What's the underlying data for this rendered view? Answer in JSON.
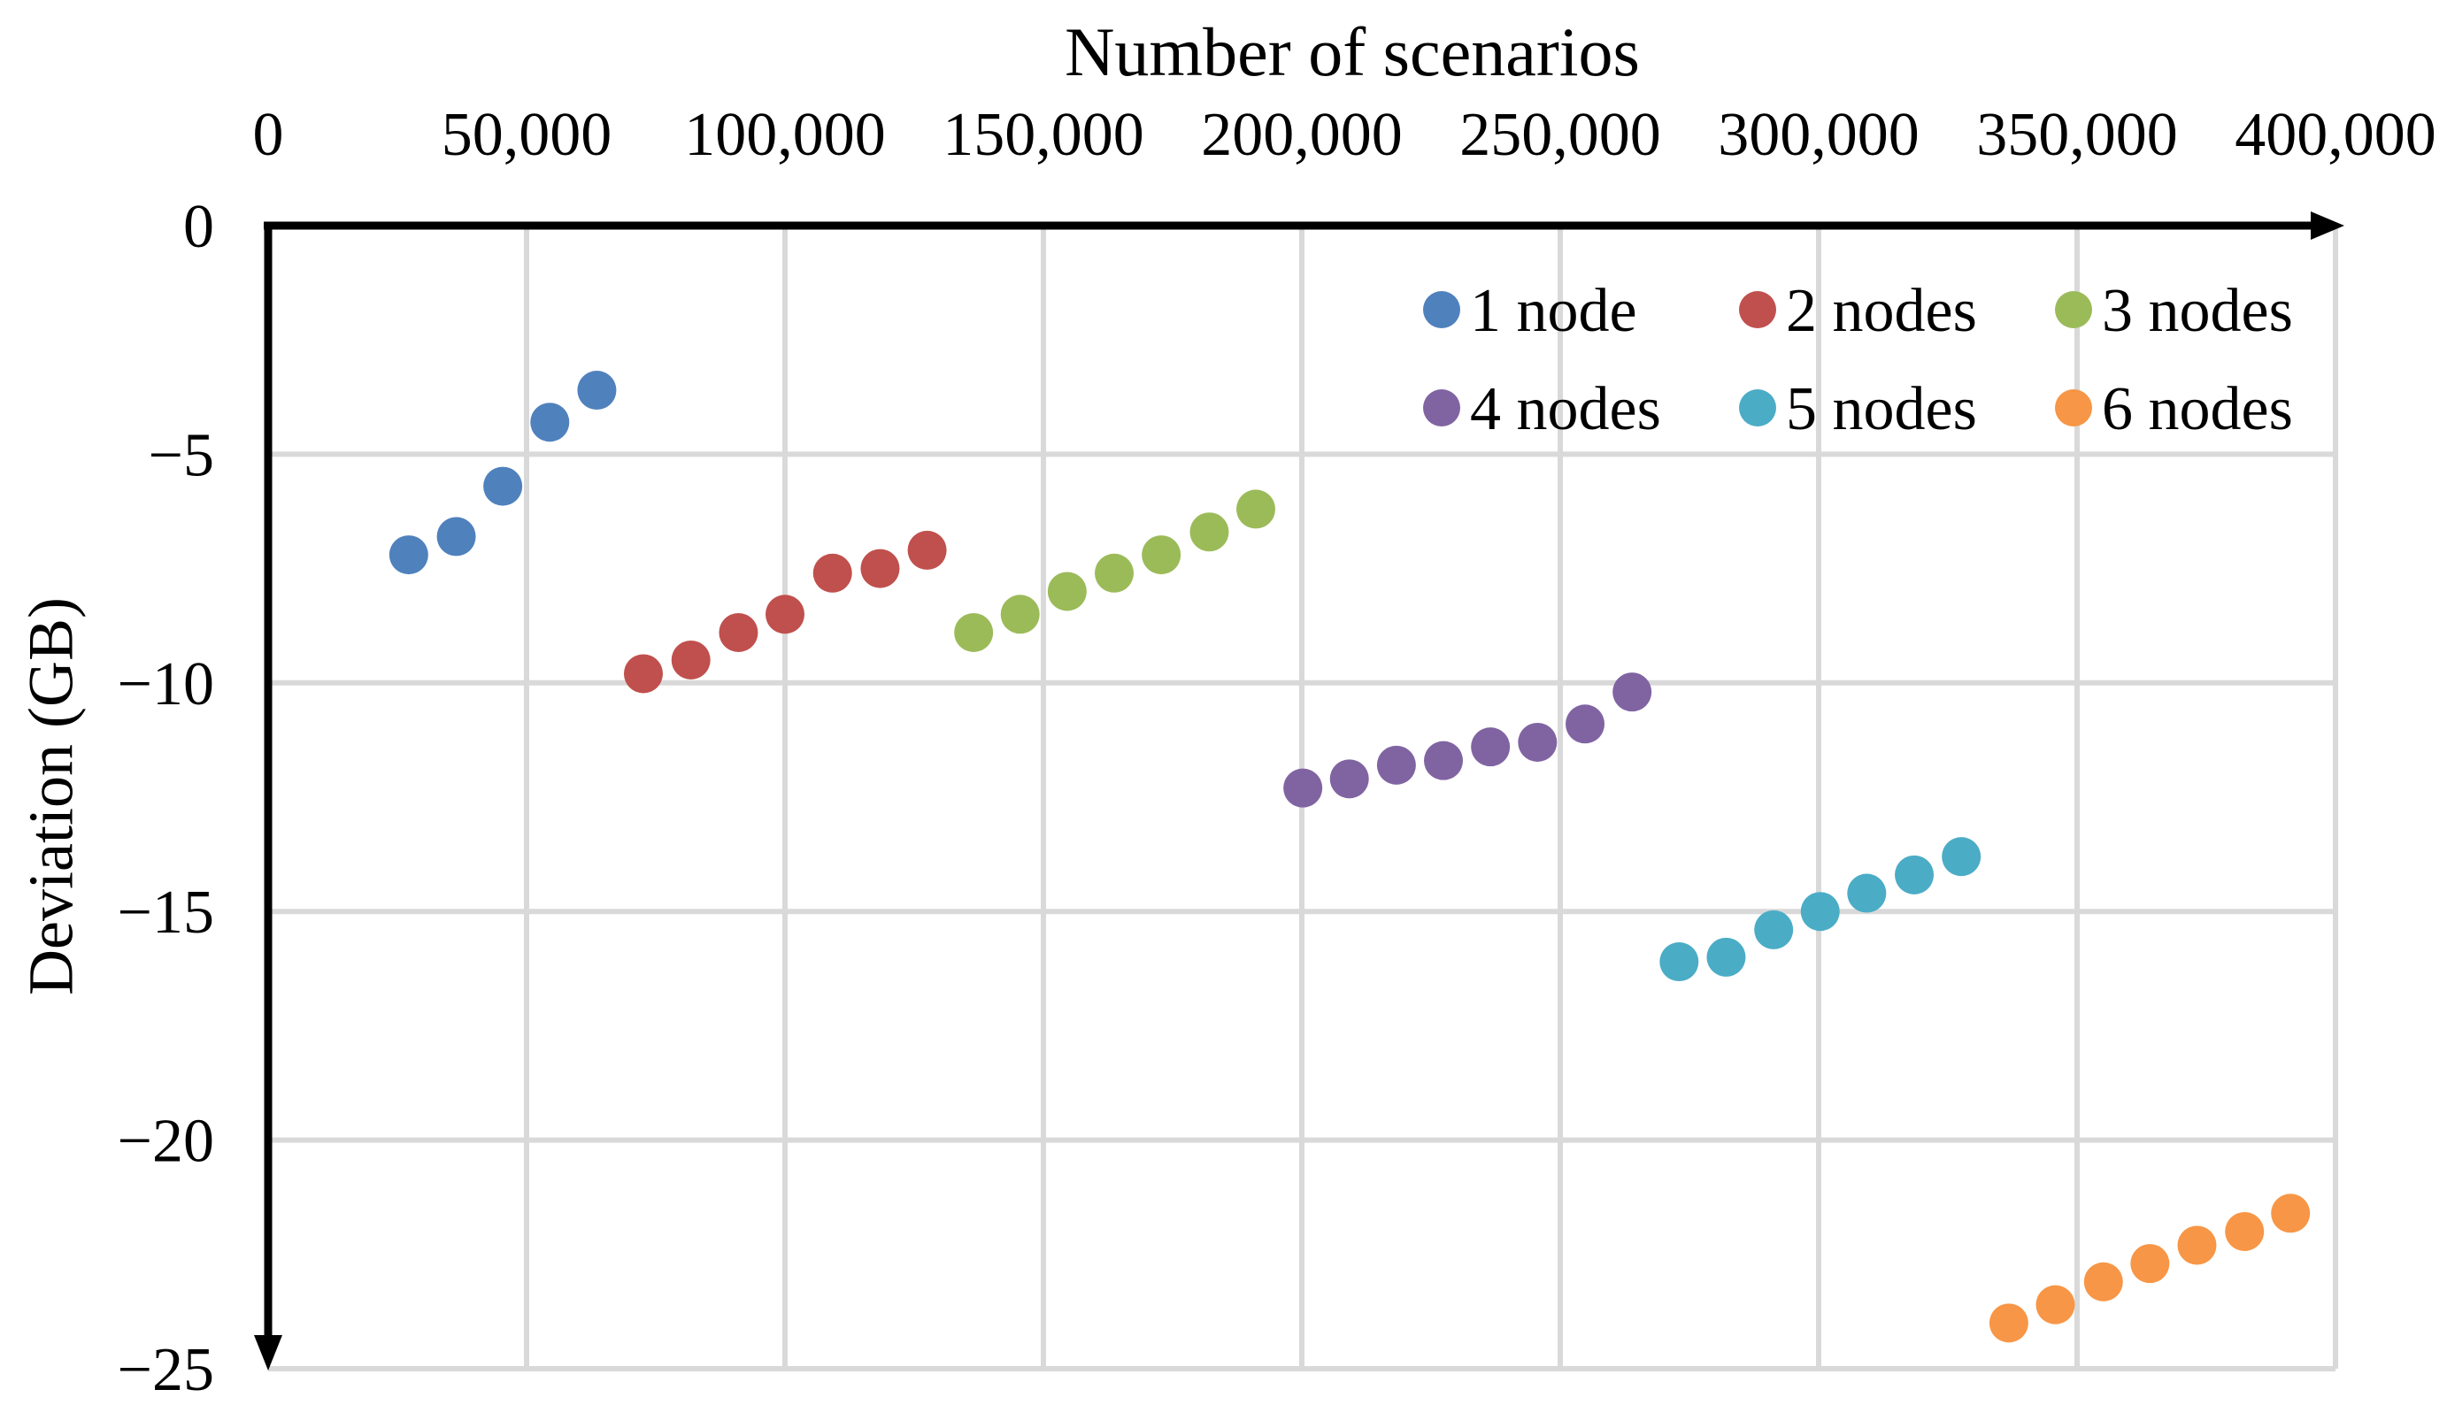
{
  "chart_data": {
    "type": "scatter",
    "title": "Number of scenarios",
    "xlabel": "Number of scenarios",
    "ylabel": "Deviation (GB)",
    "xlim": [
      0,
      400000
    ],
    "ylim": [
      -25,
      0
    ],
    "x_ticks": [
      0,
      50000,
      100000,
      150000,
      200000,
      250000,
      300000,
      350000,
      400000
    ],
    "x_tick_labels": [
      "0",
      "50,000",
      "100,000",
      "150,000",
      "200,000",
      "250,000",
      "300,000",
      "350,000",
      "400,000"
    ],
    "y_ticks": [
      0,
      -5,
      -10,
      -15,
      -20,
      -25
    ],
    "y_tick_labels": [
      "0",
      "−5",
      "−10",
      "−15",
      "−20",
      "−25"
    ],
    "grid": true,
    "gridline_color": "#D9D9D9",
    "axis_color": "#000000",
    "legend_position": "top-right-inside",
    "marker": "circle",
    "series": [
      {
        "name": "1 node",
        "color": "#4F81BD",
        "points": [
          [
            27200,
            -7.2
          ],
          [
            36400,
            -6.8
          ],
          [
            45400,
            -5.7
          ],
          [
            54500,
            -4.3
          ],
          [
            63600,
            -3.6
          ]
        ]
      },
      {
        "name": "2 nodes",
        "color": "#C0504D",
        "points": [
          [
            72600,
            -9.8
          ],
          [
            81800,
            -9.5
          ],
          [
            91000,
            -8.9
          ],
          [
            100000,
            -8.5
          ],
          [
            109200,
            -7.6
          ],
          [
            118400,
            -7.5
          ],
          [
            127500,
            -7.1
          ]
        ]
      },
      {
        "name": "3 nodes",
        "color": "#9BBB59",
        "points": [
          [
            136500,
            -8.9
          ],
          [
            145500,
            -8.5
          ],
          [
            154600,
            -8.0
          ],
          [
            163700,
            -7.6
          ],
          [
            172800,
            -7.2
          ],
          [
            182100,
            -6.7
          ],
          [
            191100,
            -6.2
          ]
        ]
      },
      {
        "name": "4 nodes",
        "color": "#8064A2",
        "points": [
          [
            200200,
            -12.3
          ],
          [
            209200,
            -12.1
          ],
          [
            218300,
            -11.8
          ],
          [
            227400,
            -11.7
          ],
          [
            236500,
            -11.4
          ],
          [
            245600,
            -11.3
          ],
          [
            254800,
            -10.9
          ],
          [
            263900,
            -10.2
          ]
        ]
      },
      {
        "name": "5 nodes",
        "color": "#4BACC6",
        "points": [
          [
            273000,
            -16.1
          ],
          [
            282100,
            -16.0
          ],
          [
            291300,
            -15.4
          ],
          [
            300300,
            -15.0
          ],
          [
            309300,
            -14.6
          ],
          [
            318500,
            -14.2
          ],
          [
            327600,
            -13.8
          ]
        ]
      },
      {
        "name": "6 nodes",
        "color": "#F79646",
        "points": [
          [
            336800,
            -24.0
          ],
          [
            345800,
            -23.6
          ],
          [
            355100,
            -23.1
          ],
          [
            364100,
            -22.7
          ],
          [
            373200,
            -22.3
          ],
          [
            382400,
            -22.0
          ],
          [
            391300,
            -21.6
          ]
        ]
      }
    ]
  }
}
